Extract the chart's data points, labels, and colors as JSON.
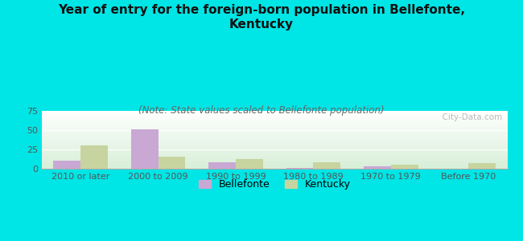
{
  "title": "Year of entry for the foreign-born population in Bellefonte,\nKentucky",
  "subtitle": "(Note: State values scaled to Bellefonte population)",
  "categories": [
    "2010 or later",
    "2000 to 2009",
    "1990 to 1999",
    "1980 to 1989",
    "1970 to 1979",
    "Before 1970"
  ],
  "bellefonte_values": [
    10,
    51,
    8,
    1,
    3,
    0
  ],
  "kentucky_values": [
    30,
    16,
    12,
    8,
    5,
    7
  ],
  "bellefonte_color": "#c9a8d4",
  "kentucky_color": "#c8d4a0",
  "background_color": "#00e5e5",
  "ylim": [
    0,
    75
  ],
  "yticks": [
    0,
    25,
    50,
    75
  ],
  "bar_width": 0.35,
  "title_fontsize": 11,
  "subtitle_fontsize": 8.5,
  "tick_fontsize": 8,
  "legend_fontsize": 9,
  "watermark": "  City-Data.com"
}
